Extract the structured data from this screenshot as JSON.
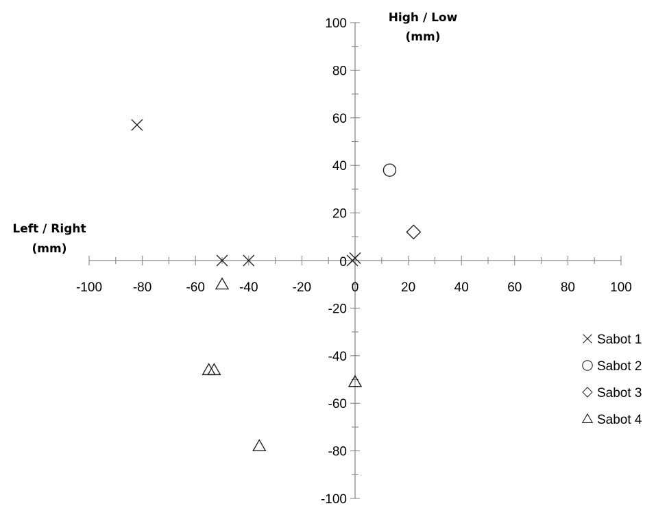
{
  "chart_data": {
    "type": "scatter",
    "title": "",
    "xlabel": "Left / Right (mm)",
    "ylabel": "High / Low (mm)",
    "xlabel_lines": [
      "Left / Right",
      "(mm)"
    ],
    "ylabel_lines": [
      "High / Low",
      "(mm)"
    ],
    "xlim": [
      -100,
      100
    ],
    "ylim": [
      -100,
      100
    ],
    "x_ticks": [
      -100,
      -80,
      -60,
      -40,
      -20,
      0,
      20,
      40,
      60,
      80,
      100
    ],
    "y_ticks": [
      -100,
      -80,
      -60,
      -40,
      -20,
      0,
      20,
      40,
      60,
      80,
      100
    ],
    "grid": false,
    "legend_position": "right",
    "series": [
      {
        "name": "Sabot 1",
        "marker": "x",
        "points": [
          [
            -82,
            57
          ],
          [
            -50,
            0
          ],
          [
            -40,
            0
          ],
          [
            -1,
            0
          ],
          [
            0,
            1
          ]
        ]
      },
      {
        "name": "Sabot 2",
        "marker": "circle",
        "points": [
          [
            13,
            38
          ]
        ]
      },
      {
        "name": "Sabot 3",
        "marker": "diamond",
        "points": [
          [
            22,
            12
          ]
        ]
      },
      {
        "name": "Sabot 4",
        "marker": "triangle",
        "points": [
          [
            -50,
            -10
          ],
          [
            -55,
            -46
          ],
          [
            -53,
            -46
          ],
          [
            0,
            -51
          ],
          [
            -36,
            -78
          ]
        ]
      }
    ]
  }
}
